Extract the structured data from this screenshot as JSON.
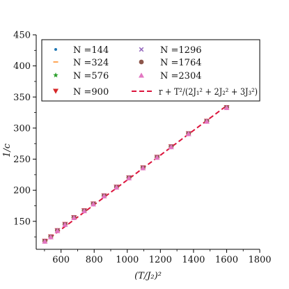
{
  "chart_data": {
    "type": "scatter",
    "xlabel": "(T/J₂)²",
    "ylabel": "1/c",
    "xlim": [
      450,
      1800
    ],
    "ylim": [
      105,
      450
    ],
    "x_ticks": [
      600,
      800,
      1000,
      1200,
      1400,
      1600,
      1800
    ],
    "y_ticks": [
      150,
      200,
      250,
      300,
      350,
      400,
      450
    ],
    "legend_position": "top",
    "series": [
      {
        "name": "N =144",
        "marker": "dot",
        "color": "#1f77b4",
        "x": [
          502,
          538,
          578,
          624,
          678,
          740,
          795,
          860,
          935,
          1010,
          1095,
          1180,
          1265,
          1370,
          1480,
          1600
        ],
        "y": [
          118,
          125,
          135,
          145,
          156,
          167,
          178,
          191,
          205,
          220,
          236,
          253,
          270,
          291,
          311,
          333
        ]
      },
      {
        "name": "N =324",
        "marker": "dash",
        "color": "#ff7f0e",
        "x": [
          502,
          538,
          578,
          624,
          678,
          740,
          795,
          860,
          935,
          1010,
          1095,
          1180,
          1265,
          1370,
          1480,
          1600
        ],
        "y": [
          118,
          125,
          135,
          145,
          156,
          167,
          178,
          191,
          205,
          220,
          236,
          253,
          270,
          291,
          311,
          333
        ]
      },
      {
        "name": "N =576",
        "marker": "star",
        "color": "#2ca02c",
        "x": [
          502,
          538,
          578,
          624,
          678,
          740,
          795,
          860,
          935,
          1010,
          1095,
          1180,
          1265,
          1370,
          1480,
          1600
        ],
        "y": [
          118,
          125,
          135,
          145,
          156,
          167,
          178,
          191,
          205,
          220,
          236,
          253,
          270,
          291,
          311,
          333
        ]
      },
      {
        "name": "N =900",
        "marker": "triangle-down",
        "color": "#d62728",
        "x": [
          502,
          538,
          578,
          624,
          678,
          740,
          795,
          860,
          935,
          1010,
          1095,
          1180,
          1265,
          1370,
          1480,
          1600
        ],
        "y": [
          118,
          125,
          135,
          145,
          156,
          167,
          178,
          191,
          205,
          220,
          236,
          253,
          270,
          291,
          311,
          333
        ]
      },
      {
        "name": "N =1296",
        "marker": "x",
        "color": "#9467bd",
        "x": [
          502,
          538,
          578,
          624,
          678,
          740,
          795,
          860,
          935,
          1010,
          1095,
          1180,
          1265,
          1370,
          1480,
          1600
        ],
        "y": [
          118,
          125,
          135,
          145,
          156,
          167,
          178,
          191,
          205,
          220,
          236,
          253,
          270,
          291,
          311,
          333
        ]
      },
      {
        "name": "N =1764",
        "marker": "circle",
        "color": "#8c564b",
        "x": [
          502,
          538,
          578,
          624,
          678,
          740,
          795,
          860,
          935,
          1010,
          1095,
          1180,
          1265,
          1370,
          1480,
          1600
        ],
        "y": [
          118,
          125,
          135,
          145,
          156,
          167,
          178,
          191,
          205,
          220,
          236,
          253,
          270,
          291,
          311,
          333
        ]
      },
      {
        "name": "N =2304",
        "marker": "triangle-up",
        "color": "#e377c2",
        "x": [
          502,
          538,
          578,
          624,
          678,
          740,
          795,
          860,
          935,
          1010,
          1095,
          1180,
          1265,
          1370,
          1480,
          1600
        ],
        "y": [
          118,
          125,
          135,
          145,
          156,
          167,
          178,
          191,
          205,
          220,
          236,
          253,
          270,
          291,
          311,
          333
        ]
      }
    ],
    "fit_line": {
      "name": "r + T²/(2J₁² + 2J₂² + 3J₃²)",
      "color": "#dc143c",
      "style": "dashed",
      "x": [
        495,
        1605
      ],
      "y": [
        116,
        337
      ]
    }
  }
}
